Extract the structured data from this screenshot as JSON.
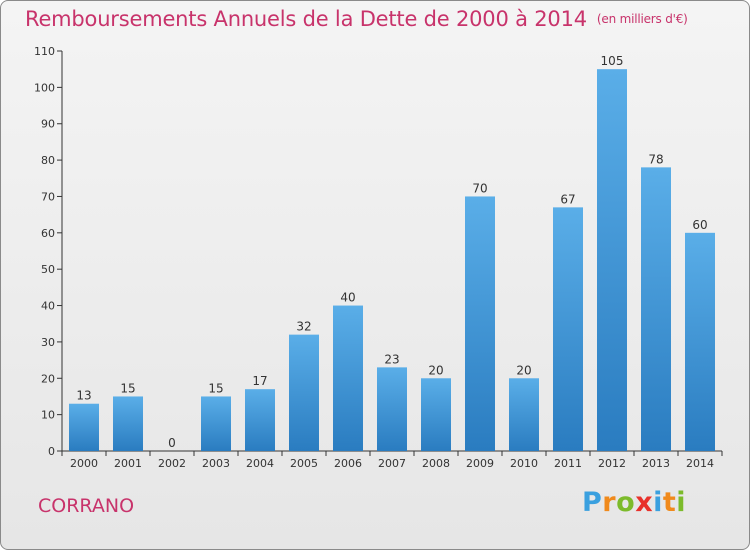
{
  "header": {
    "title": "Remboursements Annuels de la Dette de 2000 à 2014",
    "unit": "(en milliers d'€)"
  },
  "footer": {
    "commune": "CORRANO",
    "logo": "Proxiti"
  },
  "colors": {
    "title": "#c8336b",
    "bar_top": "#5aaee8",
    "bar_bottom": "#2a7cc0",
    "axis": "#333333"
  },
  "chart_data": {
    "type": "bar",
    "title": "Remboursements Annuels de la Dette de 2000 à 2014",
    "xlabel": "",
    "ylabel": "",
    "categories": [
      "2000",
      "2001",
      "2002",
      "2003",
      "2004",
      "2005",
      "2006",
      "2007",
      "2008",
      "2009",
      "2010",
      "2011",
      "2012",
      "2013",
      "2014"
    ],
    "values": [
      13,
      15,
      0,
      15,
      17,
      32,
      40,
      23,
      20,
      70,
      20,
      67,
      105,
      78,
      60
    ],
    "ylim": [
      0,
      110
    ],
    "yticks": [
      0,
      10,
      20,
      30,
      40,
      50,
      60,
      70,
      80,
      90,
      100,
      110
    ],
    "grid": false,
    "data_labels": true
  }
}
